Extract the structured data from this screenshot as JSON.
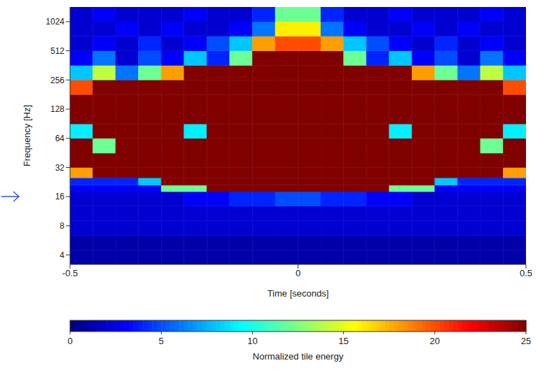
{
  "chart_data": {
    "type": "heatmap",
    "x_label": "Time [seconds]",
    "y_label": "Frequency [Hz]",
    "xlim": [
      -0.5,
      0.5
    ],
    "xticks": [
      -0.5,
      0,
      0.5
    ],
    "ylim": [
      3.2,
      1450
    ],
    "yticks": [
      4,
      8,
      16,
      32,
      64,
      128,
      256,
      512,
      1024
    ],
    "log": "y",
    "time_edges": [
      -0.5,
      -0.45,
      -0.4,
      -0.35,
      -0.3,
      -0.25,
      -0.2,
      -0.15,
      -0.1,
      -0.05,
      0,
      0.05,
      0.1,
      0.15,
      0.2,
      0.25,
      0.3,
      0.35,
      0.4,
      0.45,
      0.5
    ],
    "frequency_edges": [
      3.2,
      4.5,
      6.4,
      9,
      12.8,
      18,
      21,
      25,
      32,
      45,
      64,
      90,
      128,
      181,
      256,
      362,
      512,
      724,
      1024,
      1450
    ],
    "energy": [
      [
        1,
        1,
        1,
        1,
        1,
        1,
        1,
        1,
        1,
        1,
        1,
        1,
        1,
        1,
        1,
        1,
        1,
        1,
        1,
        1
      ],
      [
        1,
        1,
        1,
        1,
        1,
        1,
        1,
        1,
        1,
        1,
        1,
        1,
        1,
        1,
        1,
        1,
        1,
        1,
        1,
        1
      ],
      [
        2,
        2,
        2,
        2,
        2,
        2,
        2,
        2,
        2,
        2,
        2,
        2,
        2,
        2,
        2,
        2,
        2,
        2,
        2,
        2
      ],
      [
        2,
        2,
        2,
        2,
        2,
        2,
        2,
        2,
        2,
        2,
        2,
        2,
        2,
        2,
        2,
        2,
        2,
        2,
        2,
        2
      ],
      [
        2,
        2,
        2,
        2,
        2,
        3,
        3,
        4,
        4,
        5,
        5,
        4,
        4,
        3,
        3,
        2,
        2,
        2,
        2,
        2
      ],
      [
        3,
        3,
        3,
        3,
        12,
        12,
        25,
        25,
        25,
        25,
        25,
        25,
        25,
        25,
        12,
        12,
        3,
        3,
        3,
        3
      ],
      [
        4,
        4,
        4,
        8,
        25,
        25,
        25,
        25,
        25,
        25,
        25,
        25,
        25,
        25,
        25,
        25,
        8,
        4,
        4,
        4
      ],
      [
        18,
        25,
        25,
        25,
        25,
        25,
        25,
        25,
        25,
        25,
        25,
        25,
        25,
        25,
        25,
        25,
        25,
        25,
        25,
        18
      ],
      [
        25,
        25,
        25,
        25,
        25,
        25,
        25,
        25,
        25,
        25,
        25,
        25,
        25,
        25,
        25,
        25,
        25,
        25,
        25,
        25
      ],
      [
        25,
        12,
        25,
        25,
        25,
        25,
        25,
        25,
        25,
        25,
        25,
        25,
        25,
        25,
        25,
        25,
        25,
        25,
        12,
        25
      ],
      [
        9,
        25,
        25,
        25,
        25,
        9,
        25,
        25,
        25,
        25,
        25,
        25,
        25,
        25,
        9,
        25,
        25,
        25,
        25,
        9
      ],
      [
        25,
        25,
        25,
        25,
        25,
        25,
        25,
        25,
        25,
        25,
        25,
        25,
        25,
        25,
        25,
        25,
        25,
        25,
        25,
        25
      ],
      [
        25,
        25,
        25,
        25,
        25,
        25,
        25,
        25,
        25,
        25,
        25,
        25,
        25,
        25,
        25,
        25,
        25,
        25,
        25,
        25
      ],
      [
        20,
        25,
        25,
        25,
        25,
        25,
        25,
        25,
        25,
        25,
        25,
        25,
        25,
        25,
        25,
        25,
        25,
        25,
        25,
        20
      ],
      [
        8,
        14,
        6,
        12,
        18,
        25,
        25,
        25,
        25,
        25,
        25,
        25,
        25,
        25,
        25,
        18,
        12,
        6,
        14,
        8
      ],
      [
        3,
        6,
        2,
        5,
        3,
        8,
        4,
        12,
        25,
        25,
        25,
        25,
        12,
        4,
        8,
        3,
        5,
        2,
        6,
        3
      ],
      [
        2,
        3,
        2,
        4,
        2,
        3,
        5,
        8,
        18,
        20,
        20,
        18,
        8,
        5,
        3,
        2,
        4,
        2,
        3,
        2
      ],
      [
        2,
        2,
        3,
        2,
        3,
        2,
        2,
        3,
        6,
        16,
        16,
        6,
        3,
        2,
        2,
        3,
        2,
        3,
        2,
        2
      ],
      [
        2,
        3,
        2,
        2,
        2,
        3,
        2,
        2,
        4,
        12,
        12,
        4,
        2,
        2,
        3,
        2,
        2,
        2,
        3,
        2
      ]
    ],
    "colorbar": {
      "label": "Normalized tile energy",
      "range": [
        0,
        25
      ],
      "ticks": [
        0,
        5,
        10,
        15,
        20,
        25
      ]
    }
  }
}
